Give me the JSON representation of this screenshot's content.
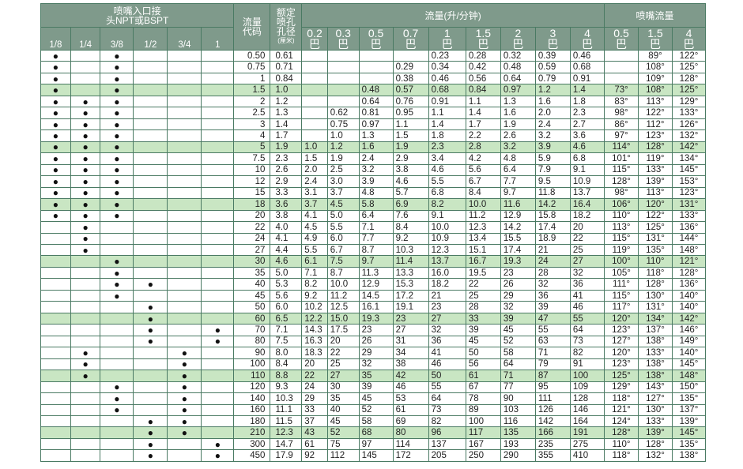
{
  "header": {
    "inlet_title": "喷嘴入口接\n头NPT或BSPT",
    "sizes": [
      "1/8",
      "1/4",
      "3/8",
      "1/2",
      "3/4",
      "1"
    ],
    "code_title": "流量\n代码",
    "orifice_title": "额定\n喷孔\n孔径",
    "orifice_unit": "(厘米)",
    "flow_title": "流量(升/分钟)",
    "flow_pressures": [
      "0.2\n巴",
      "0.3\n巴",
      "0.5\n巴",
      "0.7\n巴",
      "1\n巴",
      "1.5\n巴",
      "2\n巴",
      "3\n巴",
      "4\n巴"
    ],
    "angle_title": "喷嘴流量",
    "angle_pressures": [
      "0.5\n巴",
      "1.5\n巴",
      "4\n巴"
    ]
  },
  "dot_symbol": "●",
  "band_color": "#c9e6c3",
  "rows": [
    {
      "dots": [
        1,
        0,
        1,
        0,
        0,
        0
      ],
      "code": "0.50",
      "orifice": "0.61",
      "flows": [
        "",
        "",
        "",
        "",
        "0.23",
        "0.28",
        "0.32",
        "0.39",
        "0.46"
      ],
      "angles": [
        "",
        "89°",
        "122°"
      ],
      "band": false
    },
    {
      "dots": [
        1,
        0,
        1,
        0,
        0,
        0
      ],
      "code": "0.75",
      "orifice": "0.71",
      "flows": [
        "",
        "",
        "",
        "0.29",
        "0.34",
        "0.42",
        "0.48",
        "0.59",
        "0.68"
      ],
      "angles": [
        "",
        "108°",
        "125°"
      ],
      "band": false
    },
    {
      "dots": [
        1,
        0,
        1,
        0,
        0,
        0
      ],
      "code": "1",
      "orifice": "0.84",
      "flows": [
        "",
        "",
        "",
        "0.38",
        "0.46",
        "0.56",
        "0.64",
        "0.79",
        "0.91"
      ],
      "angles": [
        "",
        "109°",
        "128°"
      ],
      "band": false
    },
    {
      "dots": [
        1,
        0,
        1,
        0,
        0,
        0
      ],
      "code": "1.5",
      "orifice": "1.0",
      "flows": [
        "",
        "",
        "0.48",
        "0.57",
        "0.68",
        "0.84",
        "0.97",
        "1.2",
        "1.4"
      ],
      "angles": [
        "73°",
        "108°",
        "125°"
      ],
      "band": true
    },
    {
      "dots": [
        1,
        1,
        1,
        0,
        0,
        0
      ],
      "code": "2",
      "orifice": "1.2",
      "flows": [
        "",
        "",
        "0.64",
        "0.76",
        "0.91",
        "1.1",
        "1.3",
        "1.6",
        "1.8"
      ],
      "angles": [
        "83°",
        "113°",
        "129°"
      ],
      "band": false
    },
    {
      "dots": [
        1,
        1,
        1,
        0,
        0,
        0
      ],
      "code": "2.5",
      "orifice": "1.3",
      "flows": [
        "",
        "0.62",
        "0.81",
        "0.95",
        "1.1",
        "1.4",
        "1.6",
        "2.0",
        "2.3"
      ],
      "angles": [
        "98°",
        "122°",
        "133°"
      ],
      "band": false
    },
    {
      "dots": [
        1,
        1,
        1,
        0,
        0,
        0
      ],
      "code": "3",
      "orifice": "1.4",
      "flows": [
        "",
        "0.75",
        "0.97",
        "1.1",
        "1.4",
        "1.7",
        "1.9",
        "2.4",
        "2.7"
      ],
      "angles": [
        "86°",
        "112°",
        "126°"
      ],
      "band": false
    },
    {
      "dots": [
        1,
        1,
        1,
        0,
        0,
        0
      ],
      "code": "4",
      "orifice": "1.7",
      "flows": [
        "",
        "1.0",
        "1.3",
        "1.5",
        "1.8",
        "2.2",
        "2.6",
        "3.2",
        "3.6"
      ],
      "angles": [
        "97°",
        "123°",
        "132°"
      ],
      "band": false
    },
    {
      "dots": [
        1,
        1,
        1,
        0,
        0,
        0
      ],
      "code": "5",
      "orifice": "1.9",
      "flows": [
        "1.0",
        "1.2",
        "1.6",
        "1.9",
        "2.3",
        "2.8",
        "3.2",
        "3.9",
        "4.6"
      ],
      "angles": [
        "114°",
        "128°",
        "142°"
      ],
      "band": true
    },
    {
      "dots": [
        1,
        1,
        1,
        0,
        0,
        0
      ],
      "code": "7.5",
      "orifice": "2.3",
      "flows": [
        "1.5",
        "1.9",
        "2.4",
        "2.9",
        "3.4",
        "4.2",
        "4.8",
        "5.9",
        "6.8"
      ],
      "angles": [
        "101°",
        "119°",
        "134°"
      ],
      "band": false
    },
    {
      "dots": [
        1,
        1,
        1,
        0,
        0,
        0
      ],
      "code": "10",
      "orifice": "2.6",
      "flows": [
        "2.0",
        "2.5",
        "3.2",
        "3.8",
        "4.6",
        "5.6",
        "6.4",
        "7.9",
        "9.1"
      ],
      "angles": [
        "115°",
        "133°",
        "145°"
      ],
      "band": false
    },
    {
      "dots": [
        1,
        1,
        1,
        0,
        0,
        0
      ],
      "code": "12",
      "orifice": "2.9",
      "flows": [
        "2.4",
        "3.0",
        "3.9",
        "4.6",
        "5.5",
        "6.7",
        "7.7",
        "9.5",
        "10.9"
      ],
      "angles": [
        "128°",
        "139°",
        "153°"
      ],
      "band": false
    },
    {
      "dots": [
        1,
        1,
        1,
        0,
        0,
        0
      ],
      "code": "15",
      "orifice": "3.3",
      "flows": [
        "3.1",
        "3.7",
        "4.8",
        "5.7",
        "6.8",
        "8.4",
        "9.7",
        "11.8",
        "13.7"
      ],
      "angles": [
        "98°",
        "113°",
        "123°"
      ],
      "band": false
    },
    {
      "dots": [
        1,
        1,
        1,
        0,
        0,
        0
      ],
      "code": "18",
      "orifice": "3.6",
      "flows": [
        "3.7",
        "4.5",
        "5.8",
        "6.9",
        "8.2",
        "10.0",
        "11.6",
        "14.2",
        "16.4"
      ],
      "angles": [
        "106°",
        "120°",
        "131°"
      ],
      "band": true
    },
    {
      "dots": [
        1,
        1,
        1,
        0,
        0,
        0
      ],
      "code": "20",
      "orifice": "3.8",
      "flows": [
        "4.1",
        "5.0",
        "6.4",
        "7.6",
        "9.1",
        "11.2",
        "12.9",
        "15.8",
        "18.2"
      ],
      "angles": [
        "110°",
        "122°",
        "133°"
      ],
      "band": false
    },
    {
      "dots": [
        0,
        1,
        0,
        0,
        0,
        0
      ],
      "code": "22",
      "orifice": "4.0",
      "flows": [
        "4.5",
        "5.5",
        "7.1",
        "8.4",
        "10.0",
        "12.3",
        "14.2",
        "17.4",
        "20"
      ],
      "angles": [
        "113°",
        "125°",
        "136°"
      ],
      "band": false
    },
    {
      "dots": [
        0,
        1,
        0,
        0,
        0,
        0
      ],
      "code": "24",
      "orifice": "4.1",
      "flows": [
        "4.9",
        "6.0",
        "7.7",
        "9.2",
        "10.9",
        "13.4",
        "15.5",
        "18.9",
        "22"
      ],
      "angles": [
        "115°",
        "131°",
        "144°"
      ],
      "band": false
    },
    {
      "dots": [
        0,
        1,
        0,
        0,
        0,
        0
      ],
      "code": "27",
      "orifice": "4.4",
      "flows": [
        "5.5",
        "6.7",
        "8.7",
        "10.3",
        "12.3",
        "15.1",
        "17.4",
        "21",
        "25"
      ],
      "angles": [
        "119°",
        "135°",
        "148°"
      ],
      "band": false
    },
    {
      "dots": [
        0,
        0,
        1,
        0,
        0,
        0
      ],
      "code": "30",
      "orifice": "4.6",
      "flows": [
        "6.1",
        "7.5",
        "9.7",
        "11.4",
        "13.7",
        "16.7",
        "19.3",
        "24",
        "27"
      ],
      "angles": [
        "100°",
        "110°",
        "121°"
      ],
      "band": true
    },
    {
      "dots": [
        0,
        0,
        1,
        0,
        0,
        0
      ],
      "code": "35",
      "orifice": "5.0",
      "flows": [
        "7.1",
        "8.7",
        "11.3",
        "13.3",
        "16.0",
        "19.5",
        "23",
        "28",
        "32"
      ],
      "angles": [
        "105°",
        "118°",
        "128°"
      ],
      "band": false
    },
    {
      "dots": [
        0,
        0,
        1,
        1,
        0,
        0
      ],
      "code": "40",
      "orifice": "5.3",
      "flows": [
        "8.2",
        "10.0",
        "12.9",
        "15.3",
        "18.2",
        "22",
        "26",
        "32",
        "36"
      ],
      "angles": [
        "111°",
        "128°",
        "136°"
      ],
      "band": false
    },
    {
      "dots": [
        0,
        0,
        1,
        0,
        0,
        0
      ],
      "code": "45",
      "orifice": "5.6",
      "flows": [
        "9.2",
        "11.2",
        "14.5",
        "17.2",
        "21",
        "25",
        "29",
        "36",
        "41"
      ],
      "angles": [
        "115°",
        "130°",
        "140°"
      ],
      "band": false
    },
    {
      "dots": [
        0,
        0,
        0,
        1,
        0,
        0
      ],
      "code": "50",
      "orifice": "6.0",
      "flows": [
        "10.2",
        "12.5",
        "16.1",
        "19.1",
        "23",
        "28",
        "32",
        "39",
        "46"
      ],
      "angles": [
        "117°",
        "131°",
        "140°"
      ],
      "band": false
    },
    {
      "dots": [
        0,
        0,
        0,
        1,
        0,
        0
      ],
      "code": "60",
      "orifice": "6.5",
      "flows": [
        "12.2",
        "15.0",
        "19.3",
        "23",
        "27",
        "33",
        "39",
        "47",
        "55"
      ],
      "angles": [
        "120°",
        "134°",
        "142°"
      ],
      "band": true
    },
    {
      "dots": [
        0,
        0,
        0,
        1,
        0,
        1
      ],
      "code": "70",
      "orifice": "7.1",
      "flows": [
        "14.3",
        "17.5",
        "23",
        "27",
        "32",
        "39",
        "45",
        "55",
        "64"
      ],
      "angles": [
        "123°",
        "137°",
        "146°"
      ],
      "band": false
    },
    {
      "dots": [
        0,
        0,
        0,
        1,
        0,
        1
      ],
      "code": "80",
      "orifice": "7.5",
      "flows": [
        "16.3",
        "20",
        "26",
        "31",
        "36",
        "45",
        "52",
        "63",
        "73"
      ],
      "angles": [
        "127°",
        "138°",
        "149°"
      ],
      "band": false
    },
    {
      "dots": [
        0,
        1,
        0,
        0,
        1,
        0
      ],
      "code": "90",
      "orifice": "8.0",
      "flows": [
        "18.3",
        "22",
        "29",
        "34",
        "41",
        "50",
        "58",
        "71",
        "82"
      ],
      "angles": [
        "120°",
        "133°",
        "140°"
      ],
      "band": false
    },
    {
      "dots": [
        0,
        1,
        0,
        0,
        1,
        0
      ],
      "code": "100",
      "orifice": "8.4",
      "flows": [
        "20",
        "25",
        "32",
        "38",
        "46",
        "56",
        "64",
        "79",
        "91"
      ],
      "angles": [
        "123°",
        "138°",
        "145°"
      ],
      "band": false
    },
    {
      "dots": [
        0,
        1,
        0,
        0,
        1,
        0
      ],
      "code": "110",
      "orifice": "8.8",
      "flows": [
        "22",
        "27",
        "35",
        "42",
        "50",
        "61",
        "71",
        "87",
        "100"
      ],
      "angles": [
        "125°",
        "138°",
        "148°"
      ],
      "band": true
    },
    {
      "dots": [
        0,
        0,
        1,
        0,
        1,
        0
      ],
      "code": "120",
      "orifice": "9.3",
      "flows": [
        "24",
        "30",
        "39",
        "46",
        "55",
        "67",
        "77",
        "95",
        "109"
      ],
      "angles": [
        "129°",
        "143°",
        "150°"
      ],
      "band": false
    },
    {
      "dots": [
        0,
        0,
        1,
        0,
        1,
        0
      ],
      "code": "140",
      "orifice": "10.3",
      "flows": [
        "29",
        "35",
        "45",
        "53",
        "64",
        "78",
        "90",
        "111",
        "128"
      ],
      "angles": [
        "118°",
        "127°",
        "135°"
      ],
      "band": false
    },
    {
      "dots": [
        0,
        0,
        1,
        0,
        1,
        0
      ],
      "code": "160",
      "orifice": "11.1",
      "flows": [
        "33",
        "40",
        "52",
        "61",
        "73",
        "89",
        "103",
        "126",
        "146"
      ],
      "angles": [
        "121°",
        "130°",
        "137°"
      ],
      "band": false
    },
    {
      "dots": [
        0,
        0,
        0,
        1,
        1,
        0
      ],
      "code": "180",
      "orifice": "11.5",
      "flows": [
        "37",
        "45",
        "58",
        "69",
        "82",
        "100",
        "116",
        "142",
        "164"
      ],
      "angles": [
        "124°",
        "133°",
        "139°"
      ],
      "band": false
    },
    {
      "dots": [
        0,
        0,
        0,
        1,
        1,
        0
      ],
      "code": "210",
      "orifice": "12.3",
      "flows": [
        "43",
        "52",
        "68",
        "80",
        "96",
        "117",
        "135",
        "166",
        "191"
      ],
      "angles": [
        "128°",
        "139°",
        "145°"
      ],
      "band": true
    },
    {
      "dots": [
        0,
        0,
        0,
        1,
        0,
        1
      ],
      "code": "300",
      "orifice": "14.7",
      "flows": [
        "61",
        "75",
        "97",
        "114",
        "137",
        "167",
        "193",
        "235",
        "275"
      ],
      "angles": [
        "110°",
        "128°",
        "135°"
      ],
      "band": false
    },
    {
      "dots": [
        0,
        0,
        0,
        1,
        0,
        1
      ],
      "code": "450",
      "orifice": "17.9",
      "flows": [
        "92",
        "112",
        "145",
        "172",
        "205",
        "250",
        "290",
        "355",
        "410"
      ],
      "angles": [
        "118°",
        "132°",
        "138°"
      ],
      "band": false
    }
  ]
}
